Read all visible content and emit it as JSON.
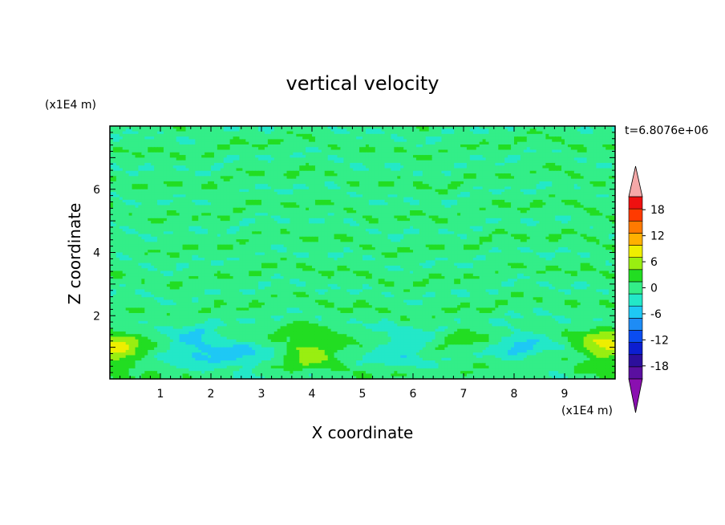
{
  "chart_data": {
    "type": "heatmap",
    "title": "vertical velocity",
    "xlabel": "X coordinate",
    "ylabel": "Z coordinate",
    "x_unit": "(x1E4 m)",
    "y_unit": "(x1E4 m)",
    "time_label": "t=6.8076e+06",
    "xlim": [
      0,
      10
    ],
    "ylim": [
      0,
      8
    ],
    "x_ticks": [
      "1",
      "2",
      "3",
      "4",
      "5",
      "6",
      "7",
      "8",
      "9"
    ],
    "y_ticks": [
      "2",
      "4",
      "6"
    ],
    "colorbar": {
      "labels": [
        "18",
        "12",
        "6",
        "0",
        "-6",
        "-12",
        "-18"
      ],
      "label_values": [
        18,
        12,
        6,
        0,
        -6,
        -12,
        -18
      ],
      "levels": [
        -21,
        -18,
        -15,
        -12,
        -9,
        -6,
        -3,
        0,
        3,
        6,
        9,
        12,
        15,
        18,
        21
      ],
      "colors": [
        "#5a0fa0",
        "#2c0f9c",
        "#0c1ed0",
        "#0a4cf0",
        "#1e8cf5",
        "#1ec8f5",
        "#23e8c8",
        "#33ee88",
        "#22dd22",
        "#99ee11",
        "#eeee00",
        "#ffb000",
        "#ff7a00",
        "#ff3a00",
        "#ee1010"
      ],
      "extend_colors": {
        "low": "#8a10b0",
        "high": "#f5a8a8"
      }
    },
    "features": [
      {
        "x": 0.1,
        "z": 0.9,
        "w": 8
      },
      {
        "x": 9.85,
        "z": 1.0,
        "w": 8
      },
      {
        "x": 4.0,
        "z": 0.95,
        "w": 6.5
      },
      {
        "x": 1.7,
        "z": 1.05,
        "w": -6
      },
      {
        "x": 2.6,
        "z": 0.7,
        "w": -4.5
      },
      {
        "x": 5.8,
        "z": 1.0,
        "w": -4
      },
      {
        "x": 8.1,
        "z": 1.1,
        "w": -4.5
      },
      {
        "x": 7.1,
        "z": 1.3,
        "w": 1.5
      }
    ]
  }
}
